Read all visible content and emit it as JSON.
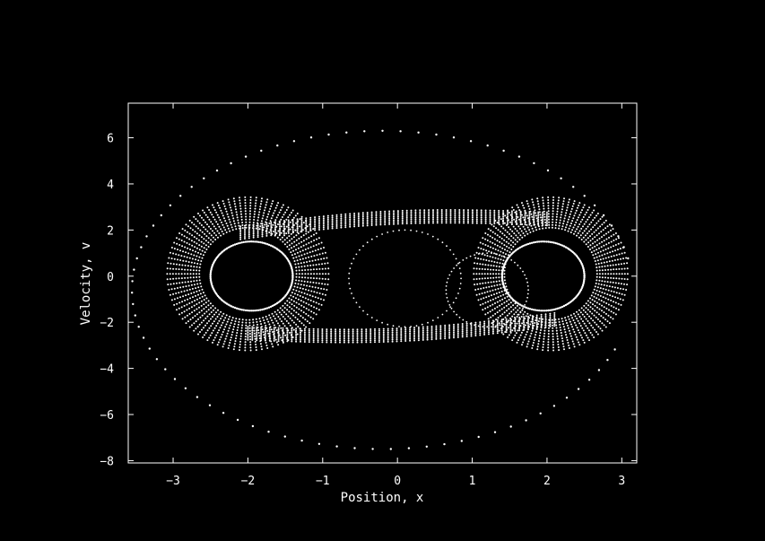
{
  "chart_data": {
    "type": "scatter",
    "title": "",
    "xlabel": "Position, x",
    "ylabel": "Velocity, v",
    "xlim": [
      -3.6,
      3.2
    ],
    "ylim": [
      -8.1,
      7.5
    ],
    "xticks": [
      -3,
      -2,
      -1,
      0,
      1,
      2,
      3
    ],
    "yticks": [
      -8,
      -6,
      -4,
      -2,
      0,
      2,
      4,
      6
    ],
    "grid": false,
    "background": "#000000",
    "marker_color": "#ffffff",
    "series": [
      {
        "description_role": "outer orbit",
        "curve": {
          "cx": -0.2,
          "cy": -0.6,
          "ax": 3.35,
          "ay": 6.9,
          "t0": 0.2,
          "t1": 5.9,
          "n": 80
        }
      },
      {
        "description_role": "left attractor ring",
        "curve": {
          "cx": -1.95,
          "cy": 0.0,
          "ax": 0.55,
          "ay": 1.5,
          "t0": 0.0,
          "t1": 6.283,
          "n": 140
        }
      },
      {
        "description_role": "right attractor ring",
        "curve": {
          "cx": 1.95,
          "cy": 0.0,
          "ax": 0.55,
          "ay": 1.5,
          "t0": 0.0,
          "t1": 6.283,
          "n": 140
        }
      }
    ]
  }
}
